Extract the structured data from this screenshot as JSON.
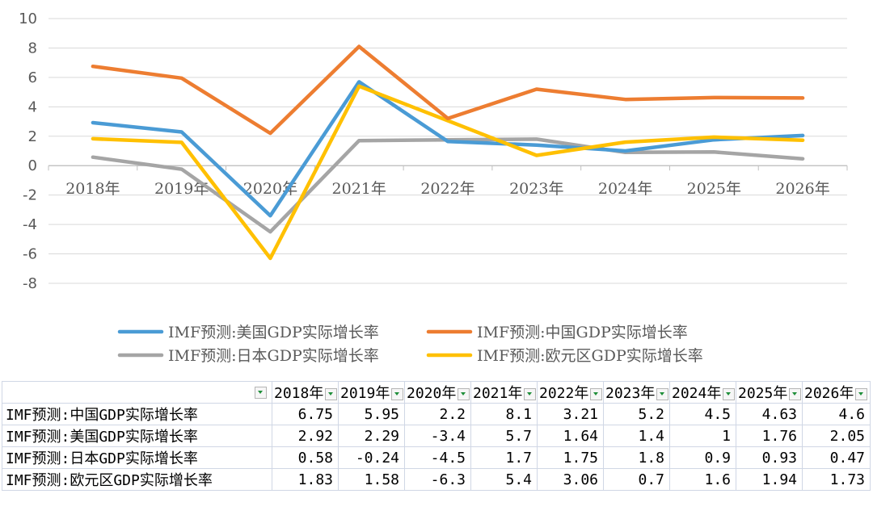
{
  "chart_data": {
    "type": "line",
    "categories": [
      "2018年",
      "2019年",
      "2020年",
      "2021年",
      "2022年",
      "2023年",
      "2024年",
      "2025年",
      "2026年"
    ],
    "ylim": [
      -8,
      10
    ],
    "yticks": [
      "10",
      "8",
      "6",
      "4",
      "2",
      "0",
      "-2",
      "-4",
      "-6",
      "-8"
    ],
    "grid": true,
    "legend_position": "bottom",
    "series": [
      {
        "name": "IMF预测:美国GDP实际增长率",
        "color": "#4a9bd5",
        "values": [
          2.92,
          2.29,
          -3.4,
          5.7,
          1.64,
          1.4,
          1,
          1.76,
          2.05
        ]
      },
      {
        "name": "IMF预测:中国GDP实际增长率",
        "color": "#ed7d31",
        "values": [
          6.75,
          5.95,
          2.2,
          8.1,
          3.21,
          5.2,
          4.5,
          4.63,
          4.6
        ]
      },
      {
        "name": "IMF预测:日本GDP实际增长率",
        "color": "#a5a5a5",
        "values": [
          0.58,
          -0.24,
          -4.5,
          1.7,
          1.75,
          1.8,
          0.9,
          0.93,
          0.47
        ]
      },
      {
        "name": "IMF预测:欧元区GDP实际增长率",
        "color": "#ffc000",
        "values": [
          1.83,
          1.58,
          -6.3,
          5.4,
          3.06,
          0.7,
          1.6,
          1.94,
          1.73
        ]
      }
    ]
  },
  "table": {
    "headers": [
      "2018年",
      "2019年",
      "2020年",
      "2021年",
      "2022年",
      "2023年",
      "2024年",
      "2025年",
      "2026年"
    ],
    "rows": [
      {
        "label": "IMF预测:中国GDP实际增长率",
        "cells": [
          "6.75",
          "5.95",
          "2.2",
          "8.1",
          "3.21",
          "5.2",
          "4.5",
          "4.63",
          "4.6"
        ]
      },
      {
        "label": "IMF预测:美国GDP实际增长率",
        "cells": [
          "2.92",
          "2.29",
          "-3.4",
          "5.7",
          "1.64",
          "1.4",
          "1",
          "1.76",
          "2.05"
        ]
      },
      {
        "label": "IMF预测:日本GDP实际增长率",
        "cells": [
          "0.58",
          "-0.24",
          "-4.5",
          "1.7",
          "1.75",
          "1.8",
          "0.9",
          "0.93",
          "0.47"
        ]
      },
      {
        "label": "IMF预测:欧元区GDP实际增长率",
        "cells": [
          "1.83",
          "1.58",
          "-6.3",
          "5.4",
          "3.06",
          "0.7",
          "1.6",
          "1.94",
          "1.73"
        ]
      }
    ]
  }
}
